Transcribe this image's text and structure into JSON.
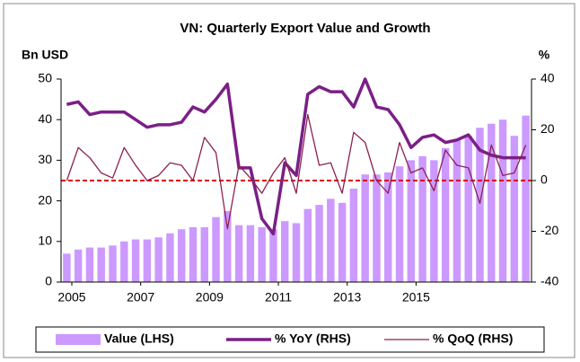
{
  "chart_data": {
    "type": "bar_line",
    "title": "VN: Quarterly Export Value and Growth",
    "ylabel": "Bn USD",
    "y2label": "%",
    "categories": [
      "2005",
      null,
      null,
      null,
      null,
      null,
      "2007",
      null,
      null,
      null,
      null,
      null,
      "2009",
      null,
      null,
      null,
      null,
      null,
      "2011",
      null,
      null,
      null,
      null,
      null,
      "2013",
      null,
      null,
      null,
      null,
      null,
      "2015",
      null,
      null,
      null,
      null,
      null,
      null,
      null,
      null,
      null,
      null
    ],
    "series": [
      {
        "name": "Value (LHS)",
        "type": "bar",
        "color": "#cc99ff",
        "values": [
          7,
          8,
          8.5,
          8.5,
          9,
          10,
          10.5,
          10.5,
          11,
          12,
          13,
          13.5,
          13.5,
          16,
          17.5,
          14,
          14,
          13.5,
          13,
          15,
          14.5,
          18,
          19,
          20.5,
          19.5,
          23,
          26.5,
          26.5,
          27,
          28.5,
          30,
          31,
          30,
          33,
          35,
          36,
          38,
          39,
          40,
          36,
          41
        ]
      },
      {
        "name": "% YoY (RHS)",
        "type": "line",
        "axis": "y2",
        "color": "#7b1f86",
        "width": 3.5,
        "values": [
          30,
          31,
          26,
          27,
          27,
          27,
          24,
          21,
          22,
          22,
          23,
          29,
          27,
          32,
          38,
          5,
          5,
          -15,
          -21,
          7,
          2,
          34,
          37,
          35,
          35,
          29,
          40,
          29,
          28,
          22,
          13,
          17,
          18,
          15,
          16,
          18,
          12,
          10,
          9,
          9,
          9
        ]
      },
      {
        "name": "% QoQ (RHS)",
        "type": "line",
        "axis": "y2",
        "color": "#8b2252",
        "width": 1.3,
        "values": [
          0,
          13,
          9,
          3,
          1,
          13,
          6,
          0,
          2,
          7,
          6,
          0,
          17,
          11,
          -19,
          6,
          1,
          -5,
          3,
          9,
          -5,
          26,
          6,
          7,
          -5,
          19,
          15,
          0,
          -5,
          15,
          3,
          5,
          -4,
          12,
          6,
          5,
          -9,
          14,
          2,
          3,
          14
        ]
      }
    ],
    "ylim": [
      0,
      50
    ],
    "yticks": [
      0,
      10,
      20,
      30,
      40,
      50
    ],
    "y2lim": [
      -40,
      40
    ],
    "y2ticks": [
      -40,
      -20,
      0,
      20,
      40
    ],
    "ref_line": {
      "axis": "y2",
      "value": 0,
      "color": "#e00000"
    },
    "legend": "bottom"
  }
}
